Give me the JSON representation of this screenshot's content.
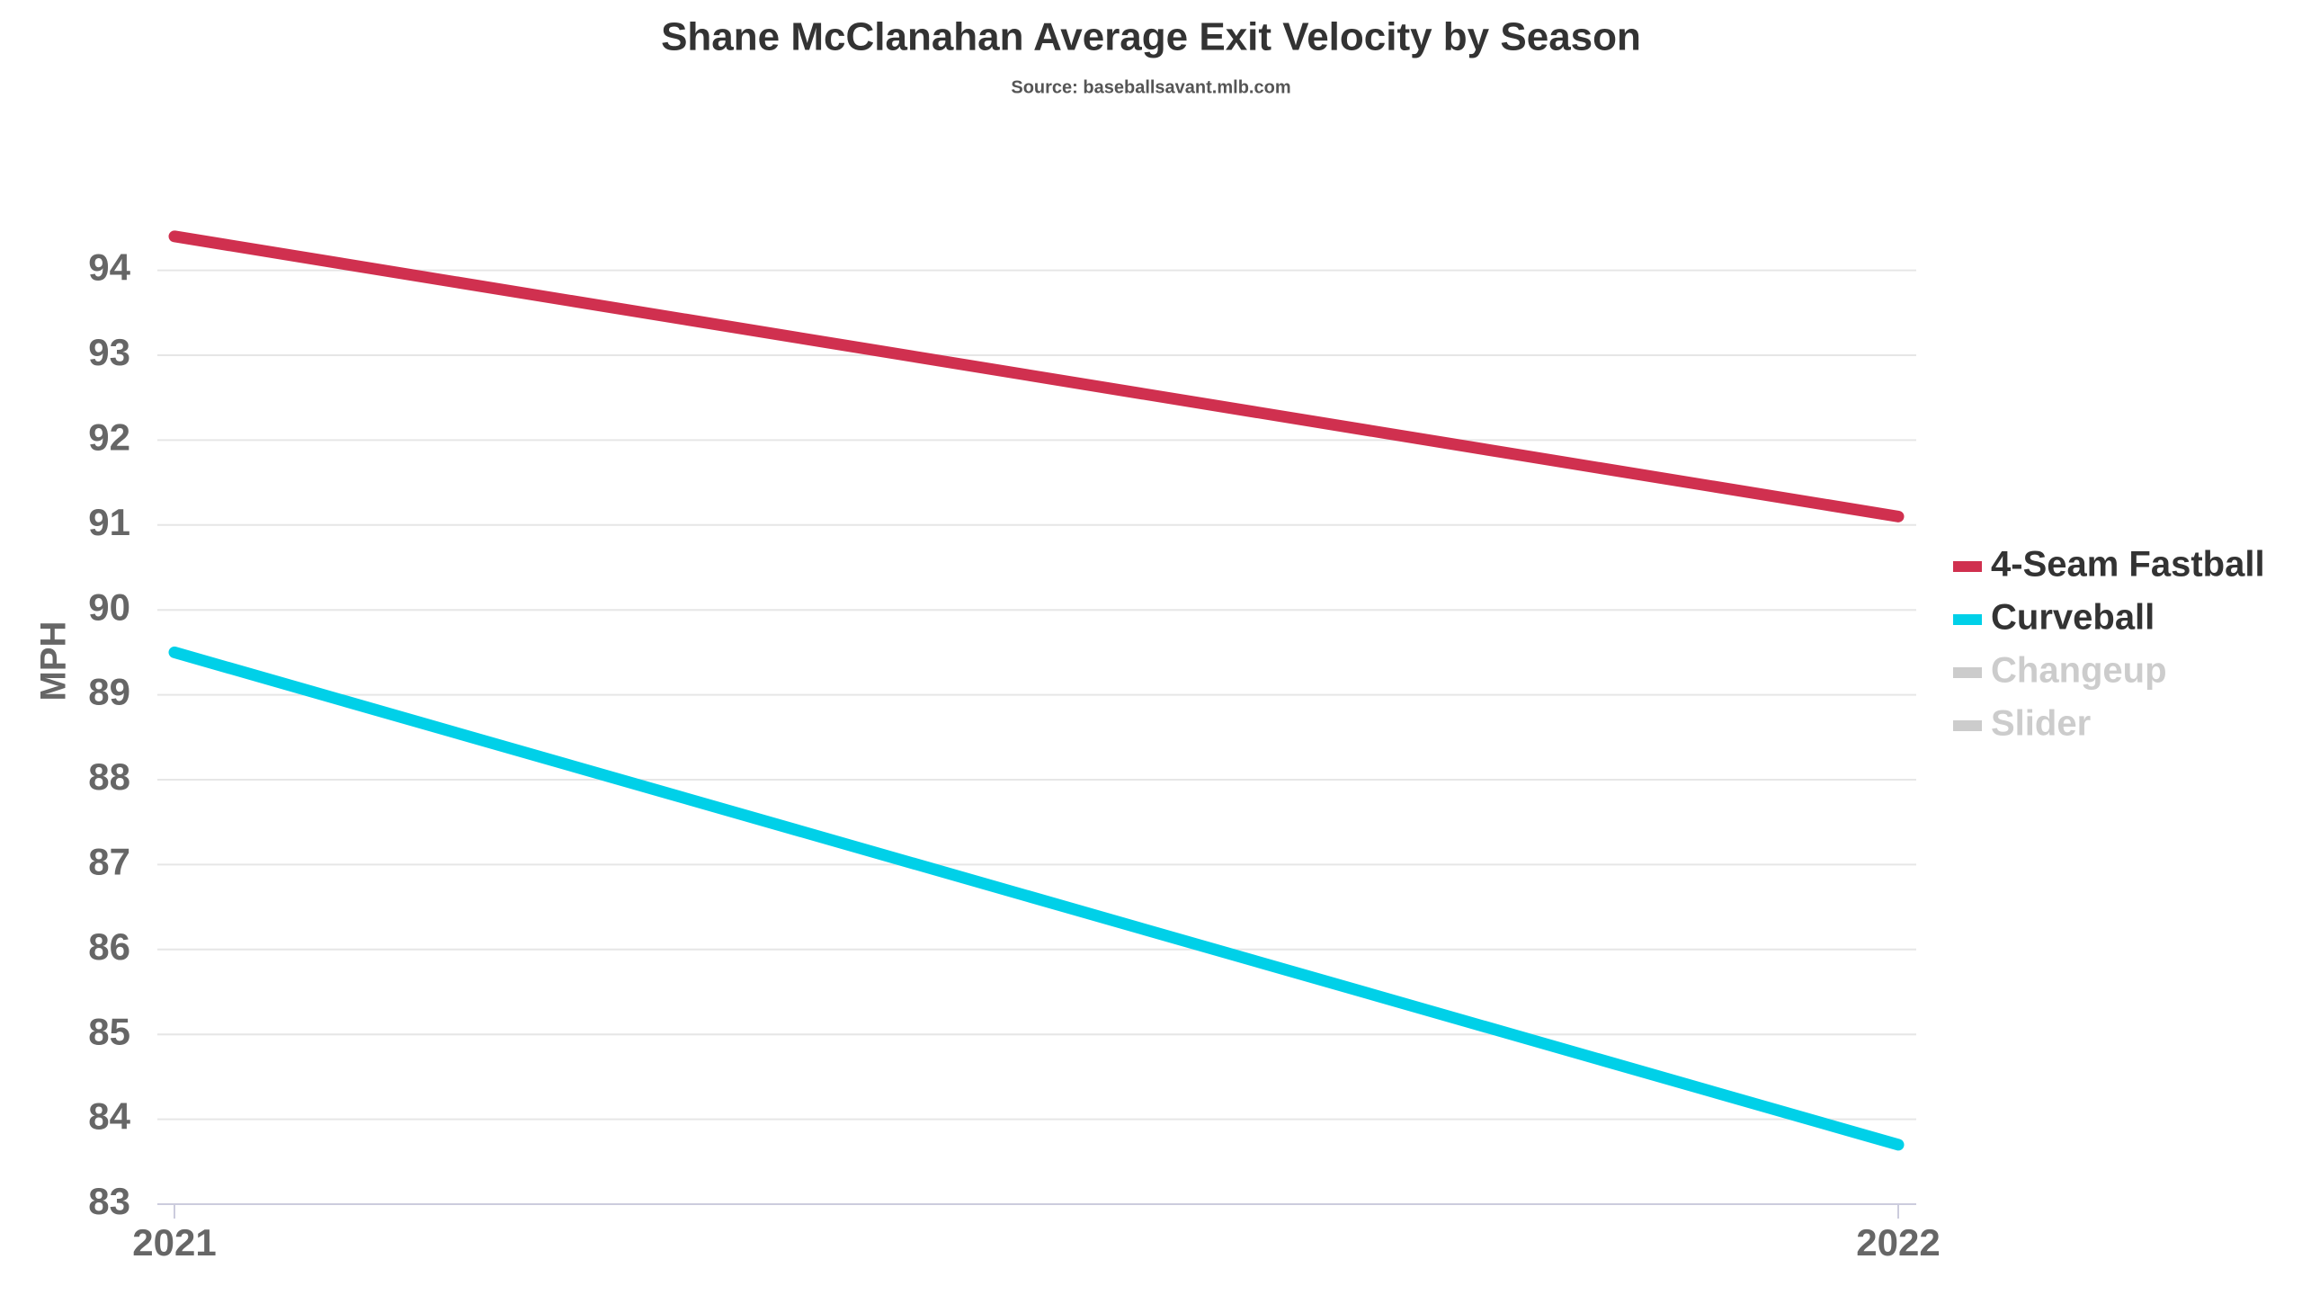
{
  "chart_data": {
    "type": "line",
    "title": "Shane McClanahan Average Exit Velocity by Season",
    "subtitle": "Source: baseballsavant.mlb.com",
    "y_label": "MPH",
    "x": [
      2021,
      2022
    ],
    "xlim": [
      2021,
      2022
    ],
    "xticks": [
      2021,
      2022
    ],
    "ylim": [
      83,
      94.6
    ],
    "yticks": [
      83,
      84,
      85,
      86,
      87,
      88,
      89,
      90,
      91,
      92,
      93,
      94
    ],
    "grid": true,
    "legend": "right",
    "series": [
      {
        "name": "4-Seam Fastball",
        "color": "#d0304f",
        "values": [
          94.4,
          91.1
        ]
      },
      {
        "name": "Curveball",
        "color": "#00d0e8",
        "values": [
          89.5,
          83.7
        ]
      },
      {
        "name": "Changeup",
        "color": "#cccccc",
        "hidden": true,
        "values": [
          null,
          null
        ]
      },
      {
        "name": "Slider",
        "color": "#cccccc",
        "hidden": true,
        "values": [
          null,
          null
        ]
      }
    ]
  }
}
